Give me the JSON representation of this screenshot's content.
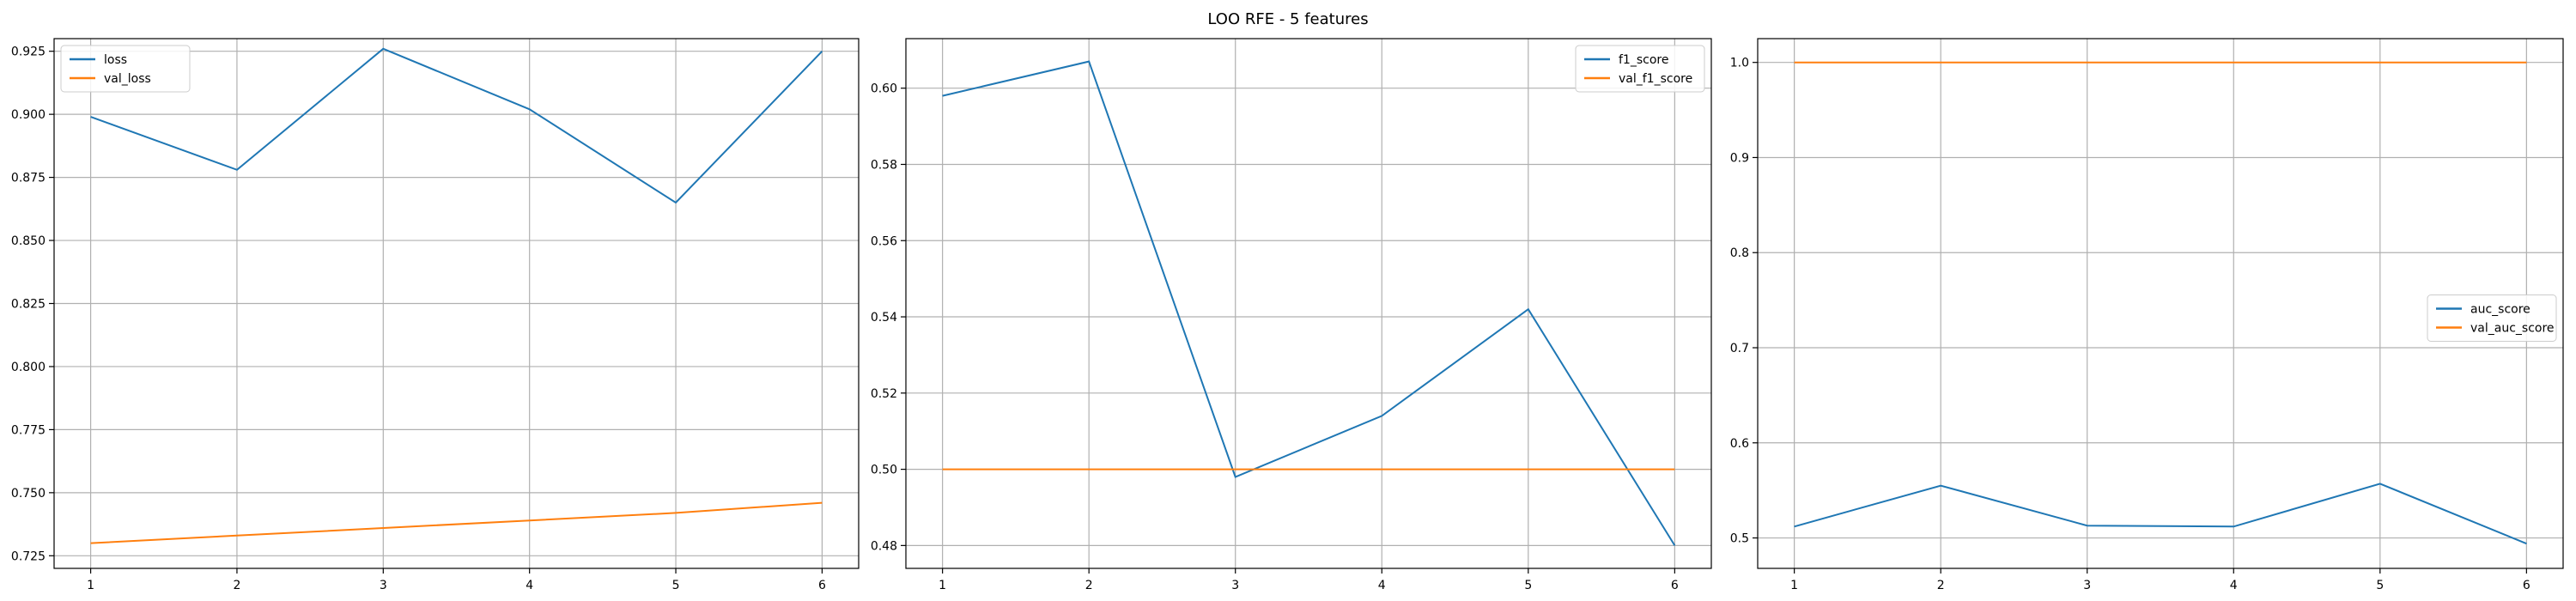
{
  "figure": {
    "title": "LOO RFE - 5 features"
  },
  "chart_data": [
    {
      "type": "line",
      "x": [
        1,
        2,
        3,
        4,
        5,
        6
      ],
      "xticks": [
        1,
        2,
        3,
        4,
        5,
        6
      ],
      "ylim": [
        0.72,
        0.93
      ],
      "yticks": [
        0.725,
        0.75,
        0.775,
        0.8,
        0.825,
        0.85,
        0.875,
        0.9,
        0.925
      ],
      "ytick_labels": [
        "0.725",
        "0.750",
        "0.775",
        "0.800",
        "0.825",
        "0.850",
        "0.875",
        "0.900",
        "0.925"
      ],
      "grid": true,
      "legend_position": "upper-left",
      "series": [
        {
          "name": "loss",
          "color": "#1f77b4",
          "values": [
            0.899,
            0.878,
            0.926,
            0.902,
            0.865,
            0.925
          ]
        },
        {
          "name": "val_loss",
          "color": "#ff7f0e",
          "values": [
            0.73,
            0.733,
            0.736,
            0.739,
            0.742,
            0.746
          ]
        }
      ]
    },
    {
      "type": "line",
      "x": [
        1,
        2,
        3,
        4,
        5,
        6
      ],
      "xticks": [
        1,
        2,
        3,
        4,
        5,
        6
      ],
      "ylim": [
        0.474,
        0.613
      ],
      "yticks": [
        0.48,
        0.5,
        0.52,
        0.54,
        0.56,
        0.58,
        0.6
      ],
      "ytick_labels": [
        "0.48",
        "0.50",
        "0.52",
        "0.54",
        "0.56",
        "0.58",
        "0.60"
      ],
      "grid": true,
      "legend_position": "upper-right",
      "series": [
        {
          "name": "f1_score",
          "color": "#1f77b4",
          "values": [
            0.598,
            0.607,
            0.498,
            0.514,
            0.542,
            0.48
          ]
        },
        {
          "name": "val_f1_score",
          "color": "#ff7f0e",
          "values": [
            0.5,
            0.5,
            0.5,
            0.5,
            0.5,
            0.5
          ]
        }
      ]
    },
    {
      "type": "line",
      "x": [
        1,
        2,
        3,
        4,
        5,
        6
      ],
      "xticks": [
        1,
        2,
        3,
        4,
        5,
        6
      ],
      "ylim": [
        0.468,
        1.025
      ],
      "yticks": [
        0.5,
        0.6,
        0.7,
        0.8,
        0.9,
        1.0
      ],
      "ytick_labels": [
        "0.5",
        "0.6",
        "0.7",
        "0.8",
        "0.9",
        "1.0"
      ],
      "grid": true,
      "legend_position": "center-right",
      "series": [
        {
          "name": "auc_score",
          "color": "#1f77b4",
          "values": [
            0.512,
            0.555,
            0.513,
            0.512,
            0.557,
            0.494
          ]
        },
        {
          "name": "val_auc_score",
          "color": "#ff7f0e",
          "values": [
            1.0,
            1.0,
            1.0,
            1.0,
            1.0,
            1.0
          ]
        }
      ]
    }
  ]
}
